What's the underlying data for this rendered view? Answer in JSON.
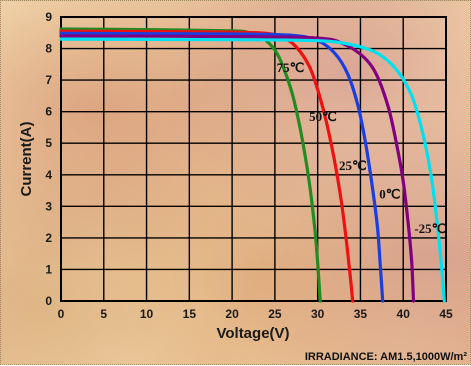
{
  "chart_data": {
    "type": "line",
    "title": "",
    "xlabel": "Voltage(V)",
    "ylabel": "Current(A)",
    "xlim": [
      0,
      45
    ],
    "ylim": [
      0,
      9
    ],
    "xticks": [
      0,
      5,
      10,
      15,
      20,
      25,
      30,
      35,
      40,
      45
    ],
    "yticks": [
      0,
      1,
      2,
      3,
      4,
      5,
      6,
      7,
      8,
      9
    ],
    "grid": true,
    "footnote": "IRRADIANCE: AM1.5,1000W/m²",
    "series": [
      {
        "name": "75℃",
        "color": "#228b22",
        "label_at": [
          25.2,
          7.25
        ],
        "points": [
          [
            0,
            8.62
          ],
          [
            10,
            8.6
          ],
          [
            20,
            8.56
          ],
          [
            22,
            8.5
          ],
          [
            23.5,
            8.35
          ],
          [
            25,
            7.95
          ],
          [
            26,
            7.4
          ],
          [
            27,
            6.6
          ],
          [
            28,
            5.4
          ],
          [
            29,
            3.8
          ],
          [
            29.7,
            2.2
          ],
          [
            30,
            1.2
          ],
          [
            30.3,
            0
          ]
        ]
      },
      {
        "name": "50℃",
        "color": "#ee1111",
        "label_at": [
          29.0,
          5.7
        ],
        "points": [
          [
            0,
            8.55
          ],
          [
            10,
            8.54
          ],
          [
            20,
            8.52
          ],
          [
            24,
            8.48
          ],
          [
            26,
            8.35
          ],
          [
            27.5,
            8.05
          ],
          [
            29,
            7.45
          ],
          [
            30,
            6.7
          ],
          [
            31,
            5.7
          ],
          [
            32,
            4.4
          ],
          [
            32.8,
            3.1
          ],
          [
            33.4,
            1.8
          ],
          [
            33.8,
            0.8
          ],
          [
            34.1,
            0
          ]
        ]
      },
      {
        "name": "25℃",
        "color": "#1a3fe0",
        "label_at": [
          32.5,
          4.15
        ],
        "points": [
          [
            0,
            8.48
          ],
          [
            10,
            8.47
          ],
          [
            20,
            8.46
          ],
          [
            27,
            8.42
          ],
          [
            30,
            8.25
          ],
          [
            32,
            7.85
          ],
          [
            33.5,
            7.2
          ],
          [
            34.7,
            6.2
          ],
          [
            35.6,
            5.0
          ],
          [
            36.4,
            3.6
          ],
          [
            37,
            2.3
          ],
          [
            37.3,
            1.2
          ],
          [
            37.6,
            0
          ]
        ]
      },
      {
        "name": "0℃",
        "color": "#800080",
        "label_at": [
          37.2,
          3.25
        ],
        "points": [
          [
            0,
            8.4
          ],
          [
            10,
            8.39
          ],
          [
            20,
            8.38
          ],
          [
            30,
            8.33
          ],
          [
            33,
            8.15
          ],
          [
            35.5,
            7.7
          ],
          [
            37,
            7.1
          ],
          [
            38.3,
            6.1
          ],
          [
            39.2,
            5.0
          ],
          [
            40,
            3.8
          ],
          [
            40.6,
            2.4
          ],
          [
            41,
            1.2
          ],
          [
            41.2,
            0
          ]
        ]
      },
      {
        "name": "-25℃",
        "color": "#00e0f0",
        "label_at": [
          41.3,
          2.15
        ],
        "points": [
          [
            0,
            8.3
          ],
          [
            10,
            8.29
          ],
          [
            20,
            8.28
          ],
          [
            30,
            8.25
          ],
          [
            34,
            8.12
          ],
          [
            37,
            7.85
          ],
          [
            39.3,
            7.3
          ],
          [
            41,
            6.5
          ],
          [
            42.3,
            5.3
          ],
          [
            43.3,
            3.9
          ],
          [
            44,
            2.4
          ],
          [
            44.5,
            1.0
          ],
          [
            44.8,
            0
          ]
        ]
      }
    ]
  }
}
